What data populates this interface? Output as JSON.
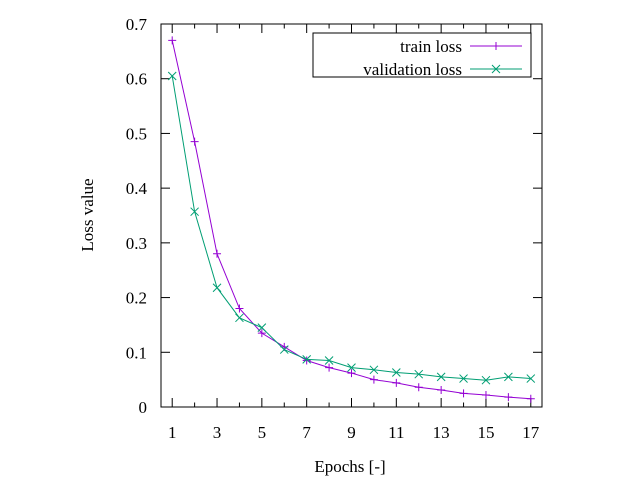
{
  "chart_data": {
    "type": "line",
    "title": "",
    "xlabel": "Epochs [-]",
    "ylabel": "Loss value",
    "xlim": [
      0.5,
      17.5
    ],
    "ylim": [
      0,
      0.7
    ],
    "xticks": [
      "1",
      "3",
      "5",
      "7",
      "9",
      "11",
      "13",
      "15",
      "17"
    ],
    "yticks": [
      "0",
      "0.1",
      "0.2",
      "0.3",
      "0.4",
      "0.5",
      "0.6",
      "0.7"
    ],
    "legend_position": "top-right",
    "x": [
      1,
      2,
      3,
      4,
      5,
      6,
      7,
      8,
      9,
      10,
      11,
      12,
      13,
      14,
      15,
      16,
      17
    ],
    "series": [
      {
        "name": "train loss",
        "color": "#9400d3",
        "marker": "plus",
        "values": [
          0.67,
          0.485,
          0.28,
          0.18,
          0.135,
          0.11,
          0.085,
          0.072,
          0.062,
          0.05,
          0.044,
          0.036,
          0.031,
          0.025,
          0.022,
          0.018,
          0.015
        ]
      },
      {
        "name": "validation loss",
        "color": "#009e73",
        "marker": "cross",
        "values": [
          0.605,
          0.357,
          0.218,
          0.163,
          0.145,
          0.105,
          0.087,
          0.085,
          0.072,
          0.068,
          0.063,
          0.06,
          0.055,
          0.052,
          0.049,
          0.055,
          0.052
        ]
      }
    ]
  }
}
